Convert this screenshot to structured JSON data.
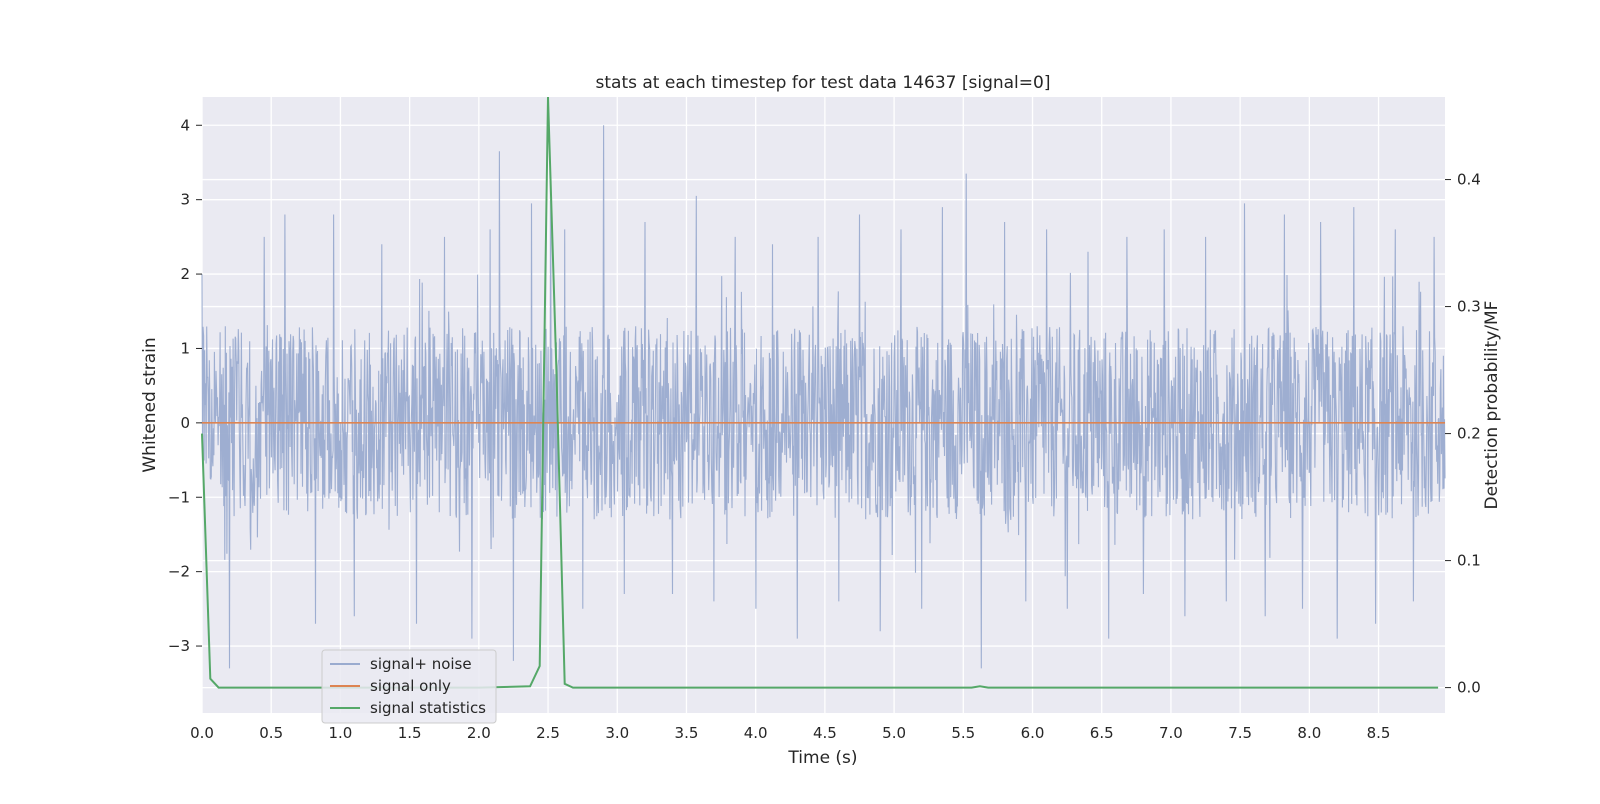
{
  "chart_data": {
    "type": "line",
    "title": "stats at each timestep for test data 14637 [signal=0]",
    "xlabel": "Time (s)",
    "ylabel_left": "Whitened strain",
    "ylabel_right": "Detection probability/MF",
    "xlim": [
      0.0,
      8.98
    ],
    "ylim_left": [
      -3.9,
      4.38
    ],
    "ylim_right": [
      -0.02,
      0.465
    ],
    "x_ticks": [
      "0.0",
      "0.5",
      "1.0",
      "1.5",
      "2.0",
      "2.5",
      "3.0",
      "3.5",
      "4.0",
      "4.5",
      "5.0",
      "5.5",
      "6.0",
      "6.5",
      "7.0",
      "7.5",
      "8.0",
      "8.5"
    ],
    "y_ticks_left": [
      "−3",
      "−2",
      "−1",
      "0",
      "1",
      "2",
      "3",
      "4"
    ],
    "y_ticks_right": [
      "0.0",
      "0.1",
      "0.2",
      "0.3",
      "0.4"
    ],
    "grid": true,
    "legend_position": "lower-left",
    "series": [
      {
        "name": "signal+ noise",
        "axis": "left",
        "color": "#9aabcf",
        "description_values": {
          "typical_range": [
            -1.3,
            1.3
          ],
          "spikes_x": [
            0.0,
            0.2,
            0.45,
            0.6,
            0.82,
            0.95,
            1.1,
            1.3,
            1.55,
            1.75,
            1.95,
            2.08,
            2.15,
            2.25,
            2.38,
            2.52,
            2.62,
            2.75,
            2.9,
            3.05,
            3.2,
            3.4,
            3.57,
            3.7,
            3.85,
            4.0,
            4.12,
            4.3,
            4.45,
            4.6,
            4.75,
            4.9,
            5.05,
            5.2,
            5.35,
            5.52,
            5.63,
            5.8,
            5.95,
            6.1,
            6.25,
            6.4,
            6.55,
            6.68,
            6.8,
            6.95,
            7.1,
            7.25,
            7.4,
            7.53,
            7.68,
            7.82,
            7.95,
            8.08,
            8.2,
            8.32,
            8.48,
            8.62,
            8.75,
            8.9
          ],
          "spikes_y": [
            2.0,
            -3.3,
            2.5,
            2.8,
            -2.7,
            2.8,
            -2.6,
            2.4,
            -2.7,
            2.5,
            -2.9,
            2.6,
            3.65,
            -3.2,
            2.95,
            3.0,
            2.6,
            -2.5,
            4.0,
            -2.3,
            2.7,
            -2.3,
            3.05,
            -2.4,
            2.5,
            -2.5,
            2.4,
            -2.9,
            2.5,
            -2.4,
            2.8,
            -2.8,
            2.6,
            -2.5,
            2.9,
            3.35,
            -3.3,
            2.7,
            -2.4,
            2.6,
            -2.5,
            2.3,
            -2.9,
            2.5,
            -2.3,
            2.6,
            -2.6,
            2.5,
            -2.4,
            2.95,
            -2.6,
            2.8,
            -2.5,
            2.7,
            -2.9,
            2.9,
            -2.7,
            2.6,
            -2.4,
            2.5
          ]
        }
      },
      {
        "name": "signal only",
        "axis": "left",
        "color": "#dd8452",
        "x": [
          0.0,
          8.98
        ],
        "y": [
          0.0,
          0.0
        ]
      },
      {
        "name": "signal statistics",
        "axis": "right",
        "color": "#55a868",
        "x": [
          0.0,
          0.06,
          0.12,
          0.5,
          1.0,
          1.5,
          2.0,
          2.37,
          2.44,
          2.5,
          2.56,
          2.62,
          2.68,
          3.0,
          4.0,
          5.0,
          5.56,
          5.62,
          5.68,
          6.0,
          7.0,
          8.0,
          8.93
        ],
        "y": [
          0.2,
          0.007,
          0.0,
          0.0,
          0.0,
          0.0,
          0.0,
          0.001,
          0.017,
          0.465,
          0.25,
          0.003,
          0.0,
          0.0,
          0.0,
          0.0,
          0.0,
          0.001,
          0.0,
          0.0,
          0.0,
          0.0,
          0.0
        ]
      }
    ]
  }
}
